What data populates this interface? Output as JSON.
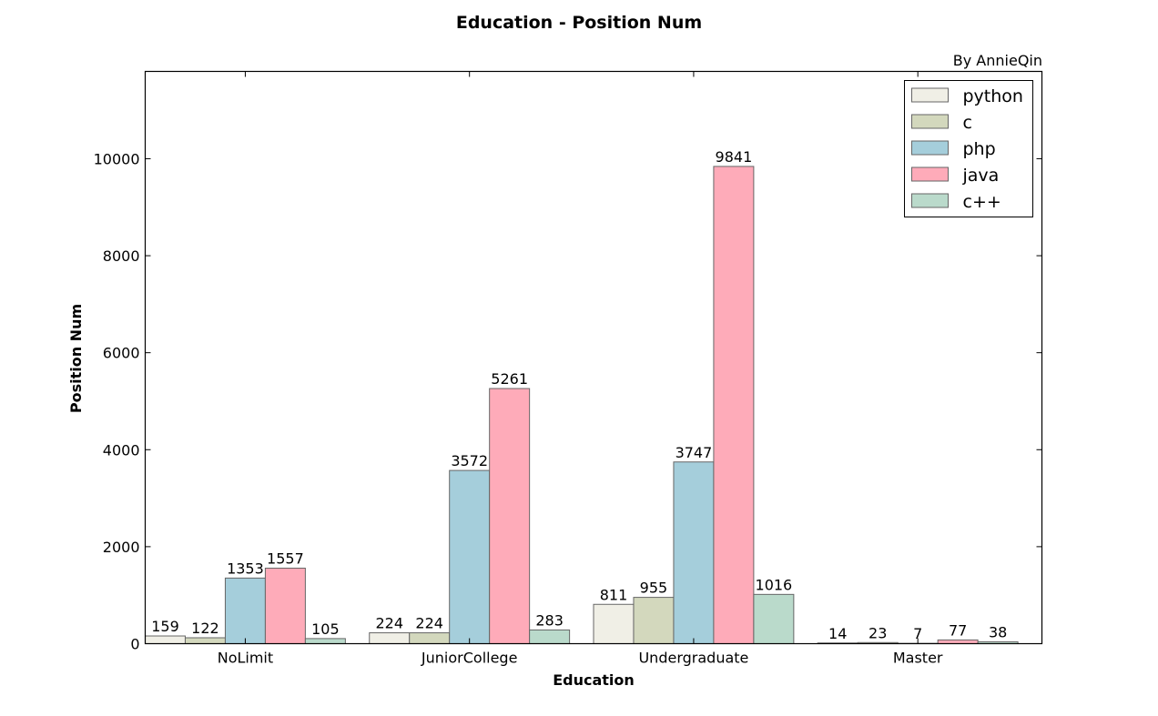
{
  "chart_data": {
    "type": "bar",
    "title": "Education - Position Num",
    "subtitle": "By AnnieQin",
    "xlabel": "Education",
    "ylabel": "Position Num",
    "categories": [
      "NoLimit",
      "JuniorCollege",
      "Undergraduate",
      "Master"
    ],
    "ylim": [
      0,
      11800
    ],
    "yticks": [
      0,
      2000,
      4000,
      6000,
      8000,
      10000
    ],
    "ytick_labels": [
      "0",
      "2000",
      "4000",
      "6000",
      "8000",
      "10000"
    ],
    "grid": false,
    "legend_position": "top-right",
    "series": [
      {
        "name": "python",
        "color": "#f0efe6",
        "values": [
          159,
          224,
          811,
          14
        ]
      },
      {
        "name": "c",
        "color": "#d3d8bd",
        "values": [
          122,
          224,
          955,
          23
        ]
      },
      {
        "name": "php",
        "color": "#a5cedb",
        "values": [
          1353,
          3572,
          3747,
          7
        ]
      },
      {
        "name": "java",
        "color": "#feabb9",
        "values": [
          1557,
          5261,
          9841,
          77
        ]
      },
      {
        "name": "c++",
        "color": "#badacb",
        "values": [
          105,
          283,
          1016,
          38
        ]
      }
    ]
  }
}
